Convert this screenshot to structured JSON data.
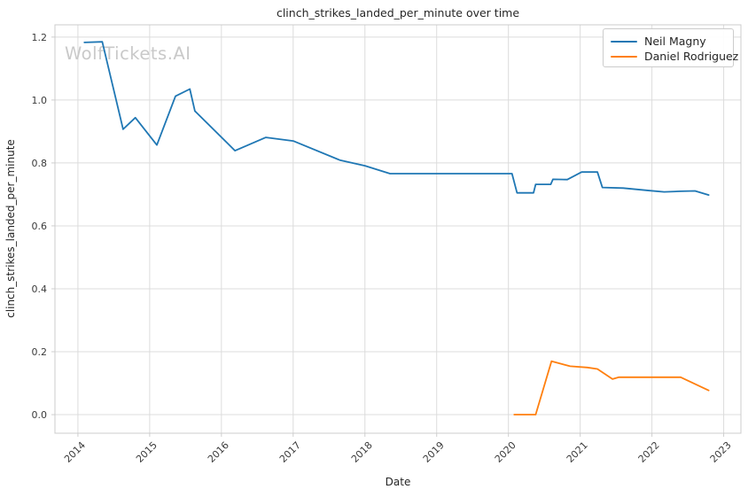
{
  "watermark": "WolfTickets.AI",
  "chart_data": {
    "type": "line",
    "title": "clinch_strikes_landed_per_minute over time",
    "xlabel": "Date",
    "ylabel": "clinch_strikes_landed_per_minute",
    "xlim": [
      2013.68,
      2023.24
    ],
    "ylim": [
      -0.059,
      1.239
    ],
    "x_ticks": [
      "2014",
      "2015",
      "2016",
      "2017",
      "2018",
      "2019",
      "2020",
      "2021",
      "2022",
      "2023"
    ],
    "y_ticks": [
      "0.0",
      "0.2",
      "0.4",
      "0.6",
      "0.8",
      "1.0",
      "1.2"
    ],
    "grid": true,
    "legend_position": "upper right",
    "series": [
      {
        "name": "Neil Magny",
        "color": "#1f77b4",
        "points": [
          [
            2014.09,
            1.183
          ],
          [
            2014.34,
            1.185
          ],
          [
            2014.63,
            0.907
          ],
          [
            2014.8,
            0.944
          ],
          [
            2015.1,
            0.857
          ],
          [
            2015.36,
            1.012
          ],
          [
            2015.56,
            1.035
          ],
          [
            2015.63,
            0.965
          ],
          [
            2016.19,
            0.839
          ],
          [
            2016.62,
            0.881
          ],
          [
            2017.0,
            0.87
          ],
          [
            2017.65,
            0.809
          ],
          [
            2018.0,
            0.791
          ],
          [
            2018.35,
            0.766
          ],
          [
            2020.05,
            0.766
          ],
          [
            2020.12,
            0.705
          ],
          [
            2020.35,
            0.705
          ],
          [
            2020.38,
            0.732
          ],
          [
            2020.59,
            0.732
          ],
          [
            2020.62,
            0.748
          ],
          [
            2020.82,
            0.747
          ],
          [
            2021.02,
            0.771
          ],
          [
            2021.24,
            0.771
          ],
          [
            2021.31,
            0.722
          ],
          [
            2021.6,
            0.72
          ],
          [
            2021.97,
            0.712
          ],
          [
            2022.17,
            0.708
          ],
          [
            2022.4,
            0.71
          ],
          [
            2022.6,
            0.711
          ],
          [
            2022.79,
            0.698
          ]
        ]
      },
      {
        "name": "Daniel Rodriguez",
        "color": "#ff7f0e",
        "points": [
          [
            2020.08,
            0.0
          ],
          [
            2020.38,
            0.0
          ],
          [
            2020.6,
            0.17
          ],
          [
            2020.86,
            0.154
          ],
          [
            2021.1,
            0.15
          ],
          [
            2021.24,
            0.145
          ],
          [
            2021.45,
            0.113
          ],
          [
            2021.54,
            0.119
          ],
          [
            2022.4,
            0.119
          ],
          [
            2022.79,
            0.077
          ]
        ]
      }
    ]
  }
}
